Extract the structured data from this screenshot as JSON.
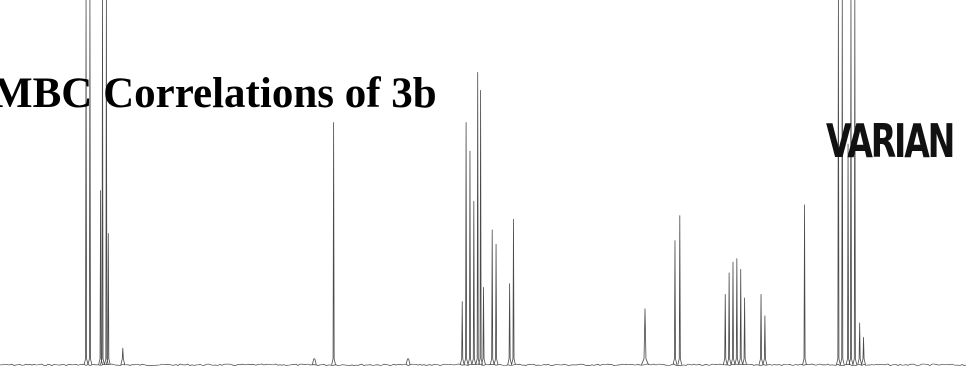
{
  "title": "MBC Correlations of 3b",
  "logo": {
    "text": "VARIAN"
  },
  "colors": {
    "background": "#ffffff",
    "trace": "#4a4a4a",
    "text": "#000000"
  },
  "chart_data": {
    "type": "line",
    "subtype": "1H NMR spectrum",
    "title": "MBC Correlations of 3b",
    "xlabel": "",
    "ylabel": "",
    "axis_visible": false,
    "grid": false,
    "x_axis_direction": "decreasing left to right (chemical shift, unlabeled)",
    "x_range": [
      0,
      1
    ],
    "y_range": [
      0,
      1
    ],
    "baseline": 0.02,
    "series": [
      {
        "peaks": [
          {
            "x": 0.089,
            "height": 1.0,
            "width": 0.001
          },
          {
            "x": 0.093,
            "height": 1.0,
            "width": 0.001
          },
          {
            "x": 0.106,
            "height": 1.0,
            "width": 0.001
          },
          {
            "x": 0.11,
            "height": 1.0,
            "width": 0.001
          },
          {
            "x": 0.104,
            "height": 0.49,
            "width": 0.001
          },
          {
            "x": 0.112,
            "height": 0.37,
            "width": 0.001
          },
          {
            "x": 0.127,
            "height": 0.05,
            "width": 0.0015
          },
          {
            "x": 0.325,
            "height": 0.02,
            "width": 0.0015
          },
          {
            "x": 0.345,
            "height": 0.68,
            "width": 0.001
          },
          {
            "x": 0.422,
            "height": 0.02,
            "width": 0.0015
          },
          {
            "x": 0.478,
            "height": 0.18,
            "width": 0.0015
          },
          {
            "x": 0.482,
            "height": 0.68,
            "width": 0.001
          },
          {
            "x": 0.486,
            "height": 0.6,
            "width": 0.001
          },
          {
            "x": 0.49,
            "height": 0.46,
            "width": 0.0012
          },
          {
            "x": 0.494,
            "height": 0.82,
            "width": 0.001
          },
          {
            "x": 0.497,
            "height": 0.77,
            "width": 0.001
          },
          {
            "x": 0.5,
            "height": 0.22,
            "width": 0.0015
          },
          {
            "x": 0.509,
            "height": 0.38,
            "width": 0.001
          },
          {
            "x": 0.513,
            "height": 0.34,
            "width": 0.001
          },
          {
            "x": 0.527,
            "height": 0.23,
            "width": 0.0012
          },
          {
            "x": 0.531,
            "height": 0.41,
            "width": 0.001
          },
          {
            "x": 0.667,
            "height": 0.16,
            "width": 0.0028
          },
          {
            "x": 0.698,
            "height": 0.35,
            "width": 0.001
          },
          {
            "x": 0.703,
            "height": 0.42,
            "width": 0.001
          },
          {
            "x": 0.75,
            "height": 0.2,
            "width": 0.001
          },
          {
            "x": 0.754,
            "height": 0.26,
            "width": 0.001
          },
          {
            "x": 0.758,
            "height": 0.29,
            "width": 0.001
          },
          {
            "x": 0.762,
            "height": 0.3,
            "width": 0.001
          },
          {
            "x": 0.766,
            "height": 0.27,
            "width": 0.001
          },
          {
            "x": 0.77,
            "height": 0.19,
            "width": 0.001
          },
          {
            "x": 0.787,
            "height": 0.2,
            "width": 0.0012
          },
          {
            "x": 0.791,
            "height": 0.14,
            "width": 0.0012
          },
          {
            "x": 0.832,
            "height": 0.45,
            "width": 0.001
          },
          {
            "x": 0.867,
            "height": 1.0,
            "width": 0.001
          },
          {
            "x": 0.871,
            "height": 1.0,
            "width": 0.001
          },
          {
            "x": 0.877,
            "height": 0.62,
            "width": 0.001
          },
          {
            "x": 0.88,
            "height": 1.0,
            "width": 0.001
          },
          {
            "x": 0.884,
            "height": 1.0,
            "width": 0.001
          },
          {
            "x": 0.889,
            "height": 0.12,
            "width": 0.0012
          },
          {
            "x": 0.893,
            "height": 0.08,
            "width": 0.0012
          }
        ]
      }
    ]
  }
}
